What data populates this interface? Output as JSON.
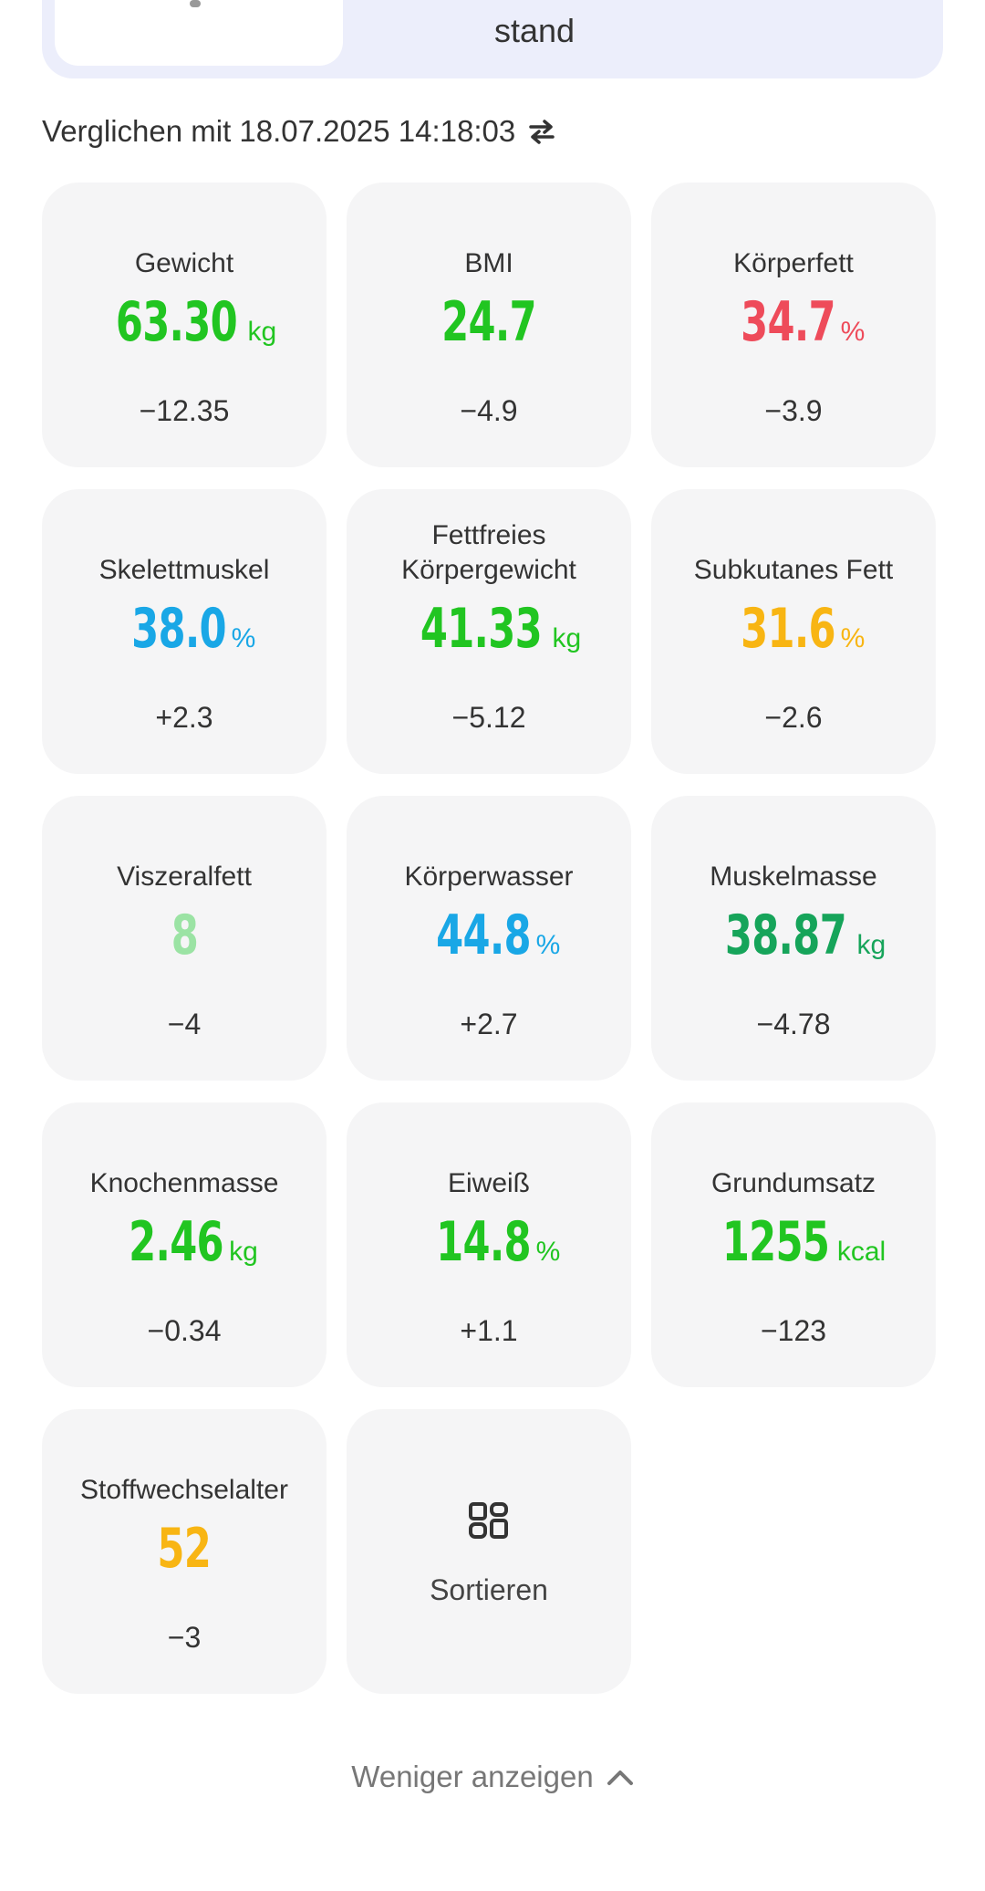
{
  "segment": {
    "active_tab_label": "",
    "other_tab_label": "stand"
  },
  "compare": {
    "text": "Verglichen mit 18.07.2025 14:18:03",
    "swap_icon": "swap-arrows-icon"
  },
  "metrics": [
    {
      "id": "gewicht",
      "title": "Gewicht",
      "value": "63.30",
      "unit": "kg",
      "delta": "−12.35",
      "color": "#21c521"
    },
    {
      "id": "bmi",
      "title": "BMI",
      "value": "24.7",
      "unit": "",
      "delta": "−4.9",
      "color": "#21c521"
    },
    {
      "id": "koerperfett",
      "title": "Körperfett",
      "value": "34.7",
      "unit": "%",
      "delta": "−3.9",
      "color": "#ee4b5a"
    },
    {
      "id": "skelettmuskel",
      "title": "Skelettmuskel",
      "value": "38.0",
      "unit": "%",
      "delta": "+2.3",
      "color": "#19a7e6"
    },
    {
      "id": "fettfreies-koerpergewicht",
      "title": "Fettfreies Körpergewicht",
      "value": "41.33",
      "unit": "kg",
      "delta": "−5.12",
      "color": "#21c521"
    },
    {
      "id": "subkutanes-fett",
      "title": "Subkutanes Fett",
      "value": "31.6",
      "unit": "%",
      "delta": "−2.6",
      "color": "#f8b513"
    },
    {
      "id": "viszeralfett",
      "title": "Viszeralfett",
      "value": "8",
      "unit": "",
      "delta": "−4",
      "color": "#9be3a4"
    },
    {
      "id": "koerperwasser",
      "title": "Körperwasser",
      "value": "44.8",
      "unit": "%",
      "delta": "+2.7",
      "color": "#19a7e6"
    },
    {
      "id": "muskelmasse",
      "title": "Muskelmasse",
      "value": "38.87",
      "unit": "kg",
      "delta": "−4.78",
      "color": "#16a45a"
    },
    {
      "id": "knochenmasse",
      "title": "Knochenmasse",
      "value": "2.46",
      "unit": "kg",
      "delta": "−0.34",
      "color": "#21c521"
    },
    {
      "id": "eiweiss",
      "title": "Eiweiß",
      "value": "14.8",
      "unit": "%",
      "delta": "+1.1",
      "color": "#21c521"
    },
    {
      "id": "grundumsatz",
      "title": "Grundumsatz",
      "value": "1255",
      "unit": "kcal",
      "delta": "−123",
      "color": "#21c521"
    },
    {
      "id": "stoffwechselalter",
      "title": "Stoffwechselalter",
      "value": "52",
      "unit": "",
      "delta": "−3",
      "color": "#f8b513"
    }
  ],
  "sort": {
    "label": "Sortieren",
    "icon": "sort-grid-icon"
  },
  "show_less": {
    "label": "Weniger anzeigen",
    "icon": "chevron-up-icon"
  }
}
